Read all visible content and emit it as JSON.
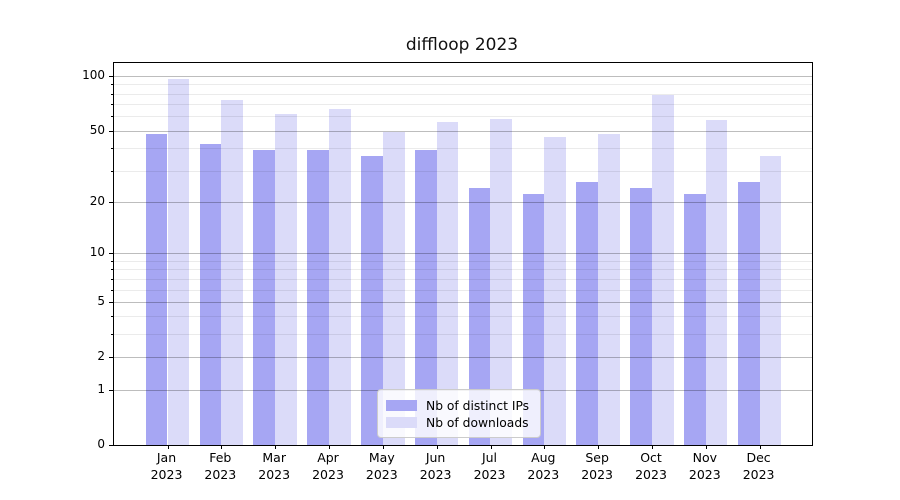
{
  "title": "diffloop 2023",
  "chart_data": {
    "type": "bar",
    "title": "diffloop 2023",
    "categories": [
      "Jan 2023",
      "Feb 2023",
      "Mar 2023",
      "Apr 2023",
      "May 2023",
      "Jun 2023",
      "Jul 2023",
      "Aug 2023",
      "Sep 2023",
      "Oct 2023",
      "Nov 2023",
      "Dec 2023"
    ],
    "months": [
      "Jan",
      "Feb",
      "Mar",
      "Apr",
      "May",
      "Jun",
      "Jul",
      "Aug",
      "Sep",
      "Oct",
      "Nov",
      "Dec"
    ],
    "year": "2023",
    "series": [
      {
        "name": "Nb of distinct IPs",
        "color": "#a6a6f3",
        "values": [
          48,
          42,
          39,
          39,
          36,
          39,
          24,
          22,
          26,
          24,
          22,
          26
        ]
      },
      {
        "name": "Nb of downloads",
        "color": "#dbdbf9",
        "values": [
          97,
          74,
          62,
          66,
          49,
          56,
          58,
          46,
          48,
          79,
          57,
          36
        ]
      }
    ],
    "xlabel": "",
    "ylabel": "",
    "yscale": "log1p",
    "ylim": [
      0,
      118
    ],
    "yticks_major": [
      0,
      1,
      2,
      5,
      10,
      20,
      50,
      100
    ],
    "yticks_minor": [
      3,
      4,
      6,
      7,
      8,
      9,
      30,
      40,
      60,
      70,
      80,
      90
    ],
    "grid": true,
    "grid_over_bars": true,
    "legend_position": "lower center inside",
    "background_color": "#ffffff",
    "axis_color": "#000000"
  }
}
